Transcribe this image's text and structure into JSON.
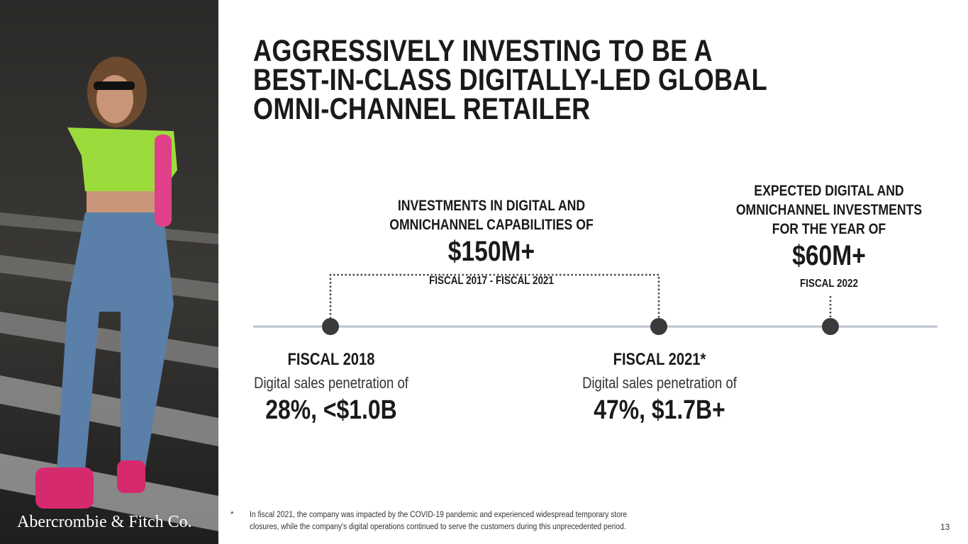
{
  "brand": "Abercrombie & Fitch Co.",
  "title": [
    "AGGRESSIVELY INVESTING TO BE A",
    "BEST-IN-CLASS DIGITALLY-LED GLOBAL",
    "OMNI-CHANNEL RETAILER"
  ],
  "investment": {
    "heading": [
      "INVESTMENTS IN DIGITAL AND",
      "OMNICHANNEL CAPABILITIES OF"
    ],
    "amount": "$150M+",
    "period": "FISCAL 2017 - FISCAL 2021"
  },
  "expected": {
    "heading": [
      "EXPECTED DIGITAL AND",
      "OMNICHANNEL INVESTMENTS",
      "FOR THE YEAR OF"
    ],
    "amount": "$60M+",
    "period": "FISCAL 2022"
  },
  "milestones": [
    {
      "label": "FISCAL 2018",
      "text": "Digital sales penetration of",
      "value": "28%, <$1.0B"
    },
    {
      "label": "FISCAL 2021*",
      "text": "Digital sales penetration of",
      "value": "47%, $1.7B+"
    }
  ],
  "footnote": {
    "marker": "*",
    "lines": [
      "In fiscal 2021, the company was impacted by the COVID-19 pandemic and experienced widespread temporary store",
      "closures, while the company's digital operations continued to serve the customers during this unprecedented period."
    ]
  },
  "page_number": "13"
}
